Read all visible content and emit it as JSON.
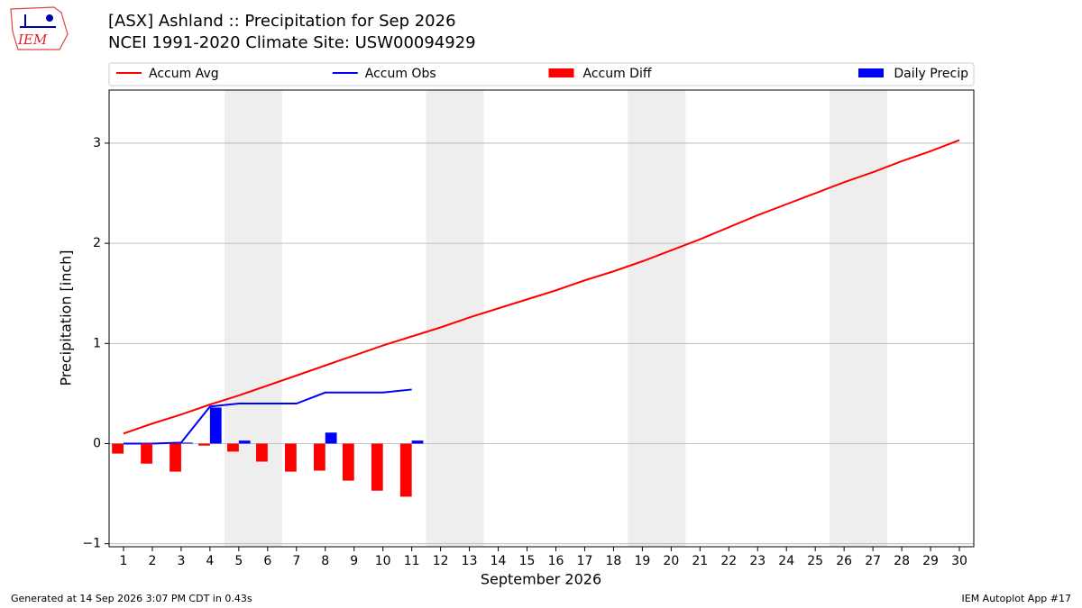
{
  "header": {
    "title": "[ASX] Ashland :: Precipitation for Sep 2026",
    "subtitle": "NCEI 1991-2020 Climate Site: USW00094929",
    "logo_text": "IEM"
  },
  "footer": {
    "left": "Generated at 14 Sep 2026 3:07 PM CDT in 0.43s",
    "right": "IEM Autoplot App #17"
  },
  "chart_data": {
    "type": "combo",
    "xlabel": "September 2026",
    "ylabel": "Precipitation [inch]",
    "x": [
      1,
      2,
      3,
      4,
      5,
      6,
      7,
      8,
      9,
      10,
      11,
      12,
      13,
      14,
      15,
      16,
      17,
      18,
      19,
      20,
      21,
      22,
      23,
      24,
      25,
      26,
      27,
      28,
      29,
      30
    ],
    "xlim": [
      0.5,
      30.5
    ],
    "xticks": [
      1,
      2,
      3,
      4,
      5,
      6,
      7,
      8,
      9,
      10,
      11,
      12,
      13,
      14,
      15,
      16,
      17,
      18,
      19,
      20,
      21,
      22,
      23,
      24,
      25,
      26,
      27,
      28,
      29,
      30
    ],
    "ylim": [
      -1.03,
      3.53
    ],
    "yticks": [
      {
        "value": -1,
        "label": "−1"
      },
      0,
      1,
      2,
      3
    ],
    "grid": true,
    "weekend_spans": [
      [
        4.5,
        6.5
      ],
      [
        11.5,
        13.5
      ],
      [
        18.5,
        20.5
      ],
      [
        25.5,
        27.5
      ]
    ],
    "series": [
      {
        "name": "Accum Avg",
        "color": "#ff0000",
        "kind": "line",
        "values": [
          0.1,
          0.2,
          0.29,
          0.39,
          0.48,
          0.58,
          0.68,
          0.78,
          0.88,
          0.98,
          1.07,
          1.16,
          1.26,
          1.35,
          1.44,
          1.53,
          1.63,
          1.72,
          1.82,
          1.93,
          2.04,
          2.16,
          2.28,
          2.39,
          2.5,
          2.61,
          2.71,
          2.82,
          2.92,
          3.03
        ]
      },
      {
        "name": "Accum Obs",
        "color": "#0000ff",
        "kind": "line",
        "values": [
          0,
          0,
          0.01,
          0.37,
          0.4,
          0.4,
          0.4,
          0.51,
          0.51,
          0.51,
          0.54,
          null,
          null,
          null,
          null,
          null,
          null,
          null,
          null,
          null,
          null,
          null,
          null,
          null,
          null,
          null,
          null,
          null,
          null,
          null
        ]
      },
      {
        "name": "Accum Diff",
        "color": "#ff0000",
        "kind": "bar",
        "values": [
          -0.1,
          -0.2,
          -0.28,
          -0.02,
          -0.08,
          -0.18,
          -0.28,
          -0.27,
          -0.37,
          -0.47,
          -0.53,
          null,
          null,
          null,
          null,
          null,
          null,
          null,
          null,
          null,
          null,
          null,
          null,
          null,
          null,
          null,
          null,
          null,
          null,
          null
        ]
      },
      {
        "name": "Daily Precip",
        "color": "#0000ff",
        "kind": "bar",
        "values": [
          0,
          0,
          0.01,
          0.36,
          0.03,
          0,
          0,
          0.11,
          0,
          0,
          0.03,
          null,
          null,
          null,
          null,
          null,
          null,
          null,
          null,
          null,
          null,
          null,
          null,
          null,
          null,
          null,
          null,
          null,
          null,
          null
        ]
      }
    ]
  }
}
